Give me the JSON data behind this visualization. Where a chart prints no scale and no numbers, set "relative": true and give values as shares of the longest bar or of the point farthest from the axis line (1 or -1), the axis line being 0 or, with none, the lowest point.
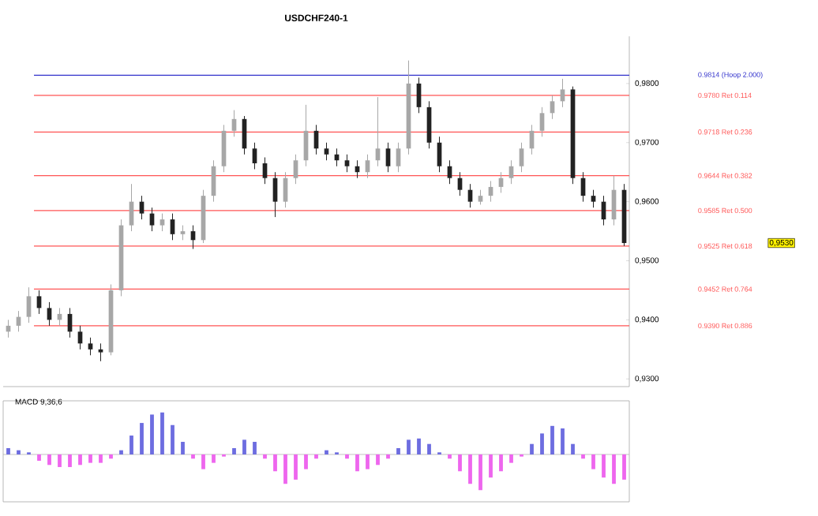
{
  "chart_data": [
    {
      "type": "candlestick",
      "title": "USDCHF240-1",
      "colors": [
        "#a7a7a7",
        "#a7a7a7",
        "#a7a7a7",
        "#222222",
        "#222222",
        "#a7a7a7",
        "#222222",
        "#222222",
        "#222222",
        "#222222",
        "#a7a7a7",
        "#a7a7a7",
        "#a7a7a7",
        "#222222",
        "#222222",
        "#a7a7a7",
        "#222222",
        "#a7a7a7",
        "#222222",
        "#a7a7a7",
        "#a7a7a7",
        "#a7a7a7",
        "#a7a7a7",
        "#222222",
        "#222222",
        "#222222",
        "#222222",
        "#a7a7a7",
        "#a7a7a7",
        "#a7a7a7",
        "#222222",
        "#222222",
        "#222222",
        "#222222",
        "#222222",
        "#a7a7a7",
        "#a7a7a7",
        "#222222",
        "#a7a7a7",
        "#a7a7a7",
        "#222222",
        "#222222",
        "#222222",
        "#222222",
        "#222222",
        "#222222",
        "#a7a7a7",
        "#a7a7a7",
        "#a7a7a7",
        "#a7a7a7",
        "#a7a7a7",
        "#a7a7a7",
        "#a7a7a7",
        "#a7a7a7",
        "#a7a7a7",
        "#222222",
        "#222222",
        "#222222",
        "#222222",
        "#a7a7a7",
        "#222222"
      ],
      "categories": [
        null,
        null,
        null,
        null,
        null,
        null,
        null,
        null,
        null,
        null,
        null,
        null,
        null,
        null,
        null,
        null,
        null,
        null,
        null,
        null,
        null,
        null,
        null,
        null,
        null,
        null,
        null,
        null,
        null,
        null,
        null,
        null,
        null,
        null,
        null,
        null,
        null,
        null,
        null,
        null,
        null,
        null,
        null,
        null,
        null,
        null,
        null,
        null,
        null,
        null,
        null,
        null,
        null,
        null,
        null,
        null,
        null,
        null,
        null,
        null,
        null
      ],
      "ohlc": [
        [
          0.938,
          0.94,
          0.937,
          0.939
        ],
        [
          0.939,
          0.9415,
          0.938,
          0.9405
        ],
        [
          0.9405,
          0.9455,
          0.9395,
          0.944
        ],
        [
          0.944,
          0.945,
          0.941,
          0.942
        ],
        [
          0.942,
          0.943,
          0.939,
          0.94
        ],
        [
          0.94,
          0.942,
          0.939,
          0.941
        ],
        [
          0.941,
          0.942,
          0.937,
          0.938
        ],
        [
          0.938,
          0.939,
          0.935,
          0.936
        ],
        [
          0.936,
          0.937,
          0.934,
          0.935
        ],
        [
          0.935,
          0.936,
          0.933,
          0.9345
        ],
        [
          0.9345,
          0.946,
          0.934,
          0.945
        ],
        [
          0.945,
          0.957,
          0.944,
          0.956
        ],
        [
          0.956,
          0.963,
          0.955,
          0.96
        ],
        [
          0.96,
          0.961,
          0.957,
          0.958
        ],
        [
          0.958,
          0.959,
          0.955,
          0.956
        ],
        [
          0.956,
          0.958,
          0.955,
          0.957
        ],
        [
          0.957,
          0.958,
          0.9535,
          0.9545
        ],
        [
          0.9545,
          0.956,
          0.9535,
          0.955
        ],
        [
          0.955,
          0.956,
          0.952,
          0.9535
        ],
        [
          0.9535,
          0.962,
          0.953,
          0.961
        ],
        [
          0.961,
          0.967,
          0.96,
          0.966
        ],
        [
          0.966,
          0.973,
          0.965,
          0.972
        ],
        [
          0.972,
          0.9755,
          0.971,
          0.974
        ],
        [
          0.974,
          0.9745,
          0.968,
          0.969
        ],
        [
          0.969,
          0.97,
          0.9655,
          0.9665
        ],
        [
          0.9665,
          0.9675,
          0.963,
          0.964
        ],
        [
          0.964,
          0.965,
          0.9574,
          0.96
        ],
        [
          0.96,
          0.965,
          0.959,
          0.964
        ],
        [
          0.964,
          0.968,
          0.963,
          0.967
        ],
        [
          0.967,
          0.9764,
          0.966,
          0.972
        ],
        [
          0.972,
          0.973,
          0.968,
          0.969
        ],
        [
          0.969,
          0.97,
          0.967,
          0.968
        ],
        [
          0.968,
          0.969,
          0.966,
          0.967
        ],
        [
          0.967,
          0.968,
          0.965,
          0.966
        ],
        [
          0.966,
          0.967,
          0.964,
          0.965
        ],
        [
          0.965,
          0.968,
          0.964,
          0.967
        ],
        [
          0.967,
          0.9777,
          0.966,
          0.969
        ],
        [
          0.969,
          0.97,
          0.965,
          0.966
        ],
        [
          0.966,
          0.97,
          0.965,
          0.969
        ],
        [
          0.969,
          0.9839,
          0.968,
          0.98
        ],
        [
          0.98,
          0.981,
          0.975,
          0.976
        ],
        [
          0.976,
          0.977,
          0.969,
          0.97
        ],
        [
          0.97,
          0.971,
          0.965,
          0.966
        ],
        [
          0.966,
          0.967,
          0.963,
          0.964
        ],
        [
          0.964,
          0.965,
          0.961,
          0.962
        ],
        [
          0.962,
          0.963,
          0.959,
          0.96
        ],
        [
          0.96,
          0.962,
          0.9595,
          0.961
        ],
        [
          0.961,
          0.9635,
          0.96,
          0.9625
        ],
        [
          0.9625,
          0.965,
          0.9615,
          0.964
        ],
        [
          0.964,
          0.967,
          0.963,
          0.966
        ],
        [
          0.966,
          0.97,
          0.965,
          0.969
        ],
        [
          0.969,
          0.973,
          0.968,
          0.972
        ],
        [
          0.972,
          0.976,
          0.971,
          0.975
        ],
        [
          0.975,
          0.978,
          0.974,
          0.977
        ],
        [
          0.977,
          0.9808,
          0.976,
          0.979
        ],
        [
          0.979,
          0.9795,
          0.963,
          0.964
        ],
        [
          0.964,
          0.965,
          0.96,
          0.961
        ],
        [
          0.961,
          0.962,
          0.959,
          0.96
        ],
        [
          0.96,
          0.961,
          0.956,
          0.957
        ],
        [
          0.957,
          0.9644,
          0.956,
          0.962
        ],
        [
          0.962,
          0.963,
          0.9525,
          0.953
        ]
      ],
      "ylim": [
        0.9287,
        0.988
      ],
      "yticks": [
        {
          "value": 0.93,
          "label": "0,9300"
        },
        {
          "value": 0.94,
          "label": "0,9400"
        },
        {
          "value": 0.95,
          "label": "0,9500"
        },
        {
          "value": 0.96,
          "label": "0,9600"
        },
        {
          "value": 0.97,
          "label": "0,9700"
        },
        {
          "value": 0.98,
          "label": "0,9800"
        }
      ],
      "tick_labels": "y",
      "ref_lines": [
        {
          "axis": "y",
          "value": 0.9814,
          "label": "0.9814 (Hoop 2.000)",
          "color": "#3333cc"
        },
        {
          "axis": "y",
          "value": 0.978,
          "label": "0.9780 Ret 0.114",
          "color": "#ff5555"
        },
        {
          "axis": "y",
          "value": 0.9718,
          "label": "0.9718 Ret 0.236",
          "color": "#ff5555"
        },
        {
          "axis": "y",
          "value": 0.9644,
          "label": "0.9644 Ret 0.382",
          "color": "#ff5555"
        },
        {
          "axis": "y",
          "value": 0.9585,
          "label": "0.9585 Ret 0.500",
          "color": "#ff5555"
        },
        {
          "axis": "y",
          "value": 0.9525,
          "label": "0.9525 Ret 0.618",
          "color": "#ff5555"
        },
        {
          "axis": "y",
          "value": 0.9452,
          "label": "0.9452 Ret 0.764",
          "color": "#ff5555"
        },
        {
          "axis": "y",
          "value": 0.939,
          "label": "0.9390 Ret 0.886",
          "color": "#ff5555"
        }
      ],
      "annotations": [
        "0,9530"
      ]
    },
    {
      "type": "bar",
      "title": "MACD 9,36,6",
      "relative": true,
      "tick_labels": false,
      "categories": [
        null,
        null,
        null,
        null,
        null,
        null,
        null,
        null,
        null,
        null,
        null,
        null,
        null,
        null,
        null,
        null,
        null,
        null,
        null,
        null,
        null,
        null,
        null,
        null,
        null,
        null,
        null,
        null,
        null,
        null,
        null,
        null,
        null,
        null,
        null,
        null,
        null,
        null,
        null,
        null,
        null,
        null,
        null,
        null,
        null,
        null,
        null,
        null,
        null,
        null,
        null,
        null,
        null,
        null,
        null,
        null,
        null,
        null,
        null,
        null,
        null
      ],
      "values": [
        0.15,
        0.1,
        0.05,
        -0.15,
        -0.25,
        -0.3,
        -0.3,
        -0.25,
        -0.2,
        -0.2,
        -0.1,
        0.1,
        0.45,
        0.75,
        0.95,
        1.0,
        0.7,
        0.3,
        -0.1,
        -0.35,
        -0.2,
        -0.05,
        0.15,
        0.35,
        0.3,
        -0.1,
        -0.4,
        -0.7,
        -0.6,
        -0.35,
        -0.1,
        0.1,
        0.05,
        -0.1,
        -0.4,
        -0.35,
        -0.25,
        -0.1,
        0.15,
        0.35,
        0.38,
        0.25,
        0.05,
        -0.1,
        -0.4,
        -0.7,
        -0.85,
        -0.55,
        -0.4,
        -0.2,
        -0.05,
        0.25,
        0.5,
        0.68,
        0.62,
        0.25,
        -0.1,
        -0.35,
        -0.55,
        -0.7,
        -0.6
      ],
      "colors": [
        "#6d6de0",
        "#6d6de0",
        "#6d6de0",
        "#ee66ee",
        "#ee66ee",
        "#ee66ee",
        "#ee66ee",
        "#ee66ee",
        "#ee66ee",
        "#ee66ee",
        "#ee66ee",
        "#6d6de0",
        "#6d6de0",
        "#6d6de0",
        "#6d6de0",
        "#6d6de0",
        "#6d6de0",
        "#6d6de0",
        "#ee66ee",
        "#ee66ee",
        "#ee66ee",
        "#ee66ee",
        "#6d6de0",
        "#6d6de0",
        "#6d6de0",
        "#ee66ee",
        "#ee66ee",
        "#ee66ee",
        "#ee66ee",
        "#ee66ee",
        "#ee66ee",
        "#6d6de0",
        "#6d6de0",
        "#ee66ee",
        "#ee66ee",
        "#ee66ee",
        "#ee66ee",
        "#ee66ee",
        "#6d6de0",
        "#6d6de0",
        "#6d6de0",
        "#6d6de0",
        "#6d6de0",
        "#ee66ee",
        "#ee66ee",
        "#ee66ee",
        "#ee66ee",
        "#ee66ee",
        "#ee66ee",
        "#ee66ee",
        "#ee66ee",
        "#6d6de0",
        "#6d6de0",
        "#6d6de0",
        "#6d6de0",
        "#6d6de0",
        "#ee66ee",
        "#ee66ee",
        "#ee66ee",
        "#ee66ee",
        "#ee66ee"
      ]
    }
  ]
}
